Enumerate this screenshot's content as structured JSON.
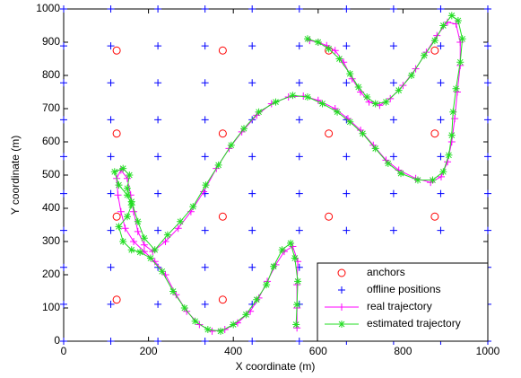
{
  "chart_data": {
    "type": "line",
    "xlabel": "X coordinate (m)",
    "ylabel": "Y coordinate (m)",
    "xlim": [
      0,
      1000
    ],
    "ylim": [
      0,
      1000
    ],
    "xticks": [
      0,
      200,
      400,
      600,
      800,
      1000
    ],
    "yticks": [
      0,
      100,
      200,
      300,
      400,
      500,
      600,
      700,
      800,
      900,
      1000
    ],
    "grid": false,
    "box": true,
    "legend": "lower right",
    "series": [
      {
        "name": "anchors",
        "color": "#ff0000",
        "marker": "o",
        "line": "none",
        "x": [
          125,
          375,
          625,
          875,
          125,
          375,
          625,
          875,
          125,
          375,
          625,
          875,
          125,
          375,
          625,
          875
        ],
        "y": [
          125,
          125,
          125,
          125,
          375,
          375,
          375,
          375,
          625,
          625,
          625,
          625,
          875,
          875,
          875,
          875
        ]
      },
      {
        "name": "offline positions",
        "color": "#0000ff",
        "marker": "+",
        "line": "none",
        "x": [
          0,
          111.1,
          222.2,
          333.3,
          444.4,
          555.6,
          666.7,
          777.8,
          888.9,
          1000,
          0,
          111.1,
          222.2,
          333.3,
          444.4,
          555.6,
          666.7,
          777.8,
          888.9,
          1000,
          0,
          111.1,
          222.2,
          333.3,
          444.4,
          555.6,
          666.7,
          777.8,
          888.9,
          1000,
          0,
          111.1,
          222.2,
          333.3,
          444.4,
          555.6,
          666.7,
          777.8,
          888.9,
          1000,
          0,
          111.1,
          222.2,
          333.3,
          444.4,
          555.6,
          666.7,
          777.8,
          888.9,
          1000,
          0,
          111.1,
          222.2,
          333.3,
          444.4,
          555.6,
          666.7,
          777.8,
          888.9,
          1000,
          0,
          111.1,
          222.2,
          333.3,
          444.4,
          555.6,
          666.7,
          777.8,
          888.9,
          1000,
          0,
          111.1,
          222.2,
          333.3,
          444.4,
          555.6,
          666.7,
          777.8,
          888.9,
          1000,
          0,
          111.1,
          222.2,
          333.3,
          444.4,
          555.6,
          666.7,
          777.8,
          888.9,
          1000,
          0,
          111.1,
          222.2,
          333.3,
          444.4,
          555.6,
          666.7,
          777.8,
          888.9,
          1000
        ],
        "y": [
          0,
          0,
          0,
          0,
          0,
          0,
          0,
          0,
          0,
          0,
          111.1,
          111.1,
          111.1,
          111.1,
          111.1,
          111.1,
          111.1,
          111.1,
          111.1,
          111.1,
          222.2,
          222.2,
          222.2,
          222.2,
          222.2,
          222.2,
          222.2,
          222.2,
          222.2,
          222.2,
          333.3,
          333.3,
          333.3,
          333.3,
          333.3,
          333.3,
          333.3,
          333.3,
          333.3,
          333.3,
          444.4,
          444.4,
          444.4,
          444.4,
          444.4,
          444.4,
          444.4,
          444.4,
          444.4,
          444.4,
          555.6,
          555.6,
          555.6,
          555.6,
          555.6,
          555.6,
          555.6,
          555.6,
          555.6,
          555.6,
          666.7,
          666.7,
          666.7,
          666.7,
          666.7,
          666.7,
          666.7,
          666.7,
          666.7,
          666.7,
          777.8,
          777.8,
          777.8,
          777.8,
          777.8,
          777.8,
          777.8,
          777.8,
          777.8,
          777.8,
          888.9,
          888.9,
          888.9,
          888.9,
          888.9,
          888.9,
          888.9,
          888.9,
          888.9,
          888.9,
          1000,
          1000,
          1000,
          1000,
          1000,
          1000,
          1000,
          1000,
          1000,
          1000
        ]
      },
      {
        "name": "real trajectory",
        "color": "#ff00ff",
        "marker": "+",
        "line": "solid",
        "x": [
          550,
          550,
          550,
          552,
          540,
          520,
          500,
          480,
          460,
          440,
          410,
          380,
          350,
          320,
          290,
          265,
          240,
          215,
          190,
          165,
          145,
          135,
          128,
          125,
          135,
          150,
          158,
          165,
          175,
          190,
          210,
          240,
          270,
          300,
          330,
          360,
          390,
          420,
          455,
          490,
          530,
          565,
          600,
          640,
          670,
          700,
          730,
          760,
          790,
          830,
          865,
          890,
          905,
          915,
          922,
          928,
          935,
          935,
          925,
          905,
          880,
          855,
          830,
          800,
          770,
          745,
          720,
          700,
          680,
          660,
          640,
          620,
          600,
          580
        ],
        "y": [
          40,
          100,
          170,
          240,
          285,
          270,
          230,
          180,
          130,
          90,
          55,
          35,
          30,
          50,
          90,
          140,
          200,
          240,
          270,
          300,
          340,
          390,
          440,
          490,
          515,
          490,
          440,
          390,
          330,
          290,
          270,
          300,
          340,
          390,
          450,
          520,
          580,
          630,
          680,
          715,
          735,
          738,
          725,
          700,
          670,
          635,
          590,
          545,
          515,
          490,
          478,
          495,
          540,
          600,
          670,
          750,
          830,
          900,
          955,
          960,
          920,
          870,
          820,
          770,
          730,
          710,
          720,
          750,
          790,
          840,
          875,
          890,
          900,
          905
        ]
      },
      {
        "name": "estimated trajectory",
        "color": "#22dd22",
        "marker": "*",
        "line": "solid",
        "x": [
          548,
          550,
          552,
          545,
          535,
          515,
          495,
          478,
          455,
          430,
          400,
          370,
          340,
          310,
          285,
          258,
          232,
          205,
          180,
          160,
          140,
          130,
          150,
          160,
          150,
          130,
          120,
          140,
          155,
          150,
          160,
          175,
          190,
          215,
          245,
          275,
          305,
          335,
          365,
          395,
          425,
          460,
          500,
          540,
          575,
          610,
          645,
          675,
          705,
          735,
          765,
          795,
          835,
          870,
          895,
          908,
          915,
          918,
          925,
          935,
          940,
          930,
          915,
          895,
          875,
          850,
          820,
          790,
          760,
          735,
          715,
          695,
          675,
          650,
          625,
          600,
          575
        ],
        "y": [
          50,
          110,
          180,
          250,
          295,
          275,
          225,
          170,
          125,
          80,
          50,
          30,
          35,
          60,
          100,
          150,
          210,
          250,
          268,
          275,
          300,
          345,
          375,
          410,
          440,
          470,
          510,
          520,
          500,
          460,
          420,
          360,
          310,
          275,
          320,
          360,
          405,
          470,
          530,
          590,
          640,
          690,
          720,
          740,
          735,
          715,
          690,
          660,
          625,
          580,
          535,
          505,
          485,
          485,
          510,
          560,
          620,
          690,
          760,
          840,
          910,
          965,
          980,
          950,
          905,
          860,
          800,
          755,
          720,
          715,
          735,
          765,
          805,
          850,
          880,
          900,
          910
        ]
      }
    ]
  }
}
